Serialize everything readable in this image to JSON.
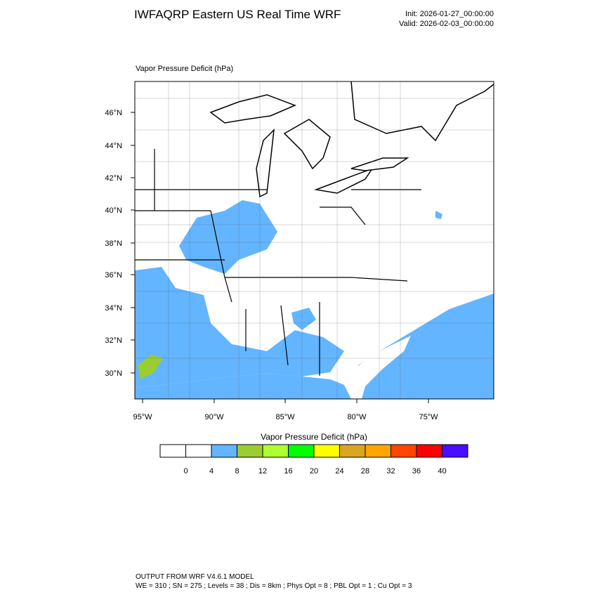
{
  "title": "IWFAQRP Eastern US Real Time WRF",
  "init": "Init: 2026-01-27_00:00:00",
  "valid": "Valid: 2026-02-03_00:00:00",
  "map": {
    "label": "Vapor Pressure Deficit   (hPa)",
    "lat_labels": [
      "46°N",
      "44°N",
      "42°N",
      "40°N",
      "38°N",
      "36°N",
      "34°N",
      "32°N",
      "30°N"
    ],
    "lon_labels": [
      "95°W",
      "90°W",
      "85°W",
      "80°W",
      "75°W"
    ]
  },
  "colorbar": {
    "title": "Vapor Pressure Deficit  (hPa)",
    "colors": [
      "#ffffff",
      "#ffffff",
      "#63b5ff",
      "#9acd32",
      "#adff2f",
      "#00ff00",
      "#ffff00",
      "#daa520",
      "#ffa500",
      "#ff4500",
      "#ff0000",
      "#4b0cff"
    ],
    "labels": [
      0,
      4,
      8,
      12,
      16,
      20,
      24,
      28,
      32,
      36,
      40
    ]
  },
  "footer": {
    "line1": "OUTPUT FROM WRF V4.6.1 MODEL",
    "line2": "WE = 310 ; SN = 275 ; Levels = 38 ; Dis = 8km ; Phys Opt = 8 ; PBL Opt = 1 ; Cu Opt = 3"
  }
}
